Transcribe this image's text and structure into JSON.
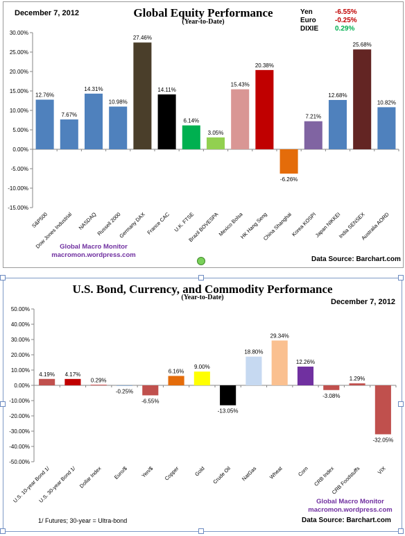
{
  "panel1": {
    "title": "Global Equity Performance",
    "subtitle": "(Year-to-Date)",
    "date": "December 7, 2012",
    "currencies": [
      {
        "name": "Yen",
        "value": "-6.55%",
        "color": "#c00000"
      },
      {
        "name": "Euro",
        "value": "-0.25%",
        "color": "#c00000"
      },
      {
        "name": "DIXIE",
        "value": "0.29%",
        "color": "#00b050"
      }
    ],
    "credit_line1": "Global Macro Monitor",
    "credit_line2": "macromon.wordpress.com",
    "source": "Data Source:   Barchart.com"
  },
  "panel2": {
    "title": "U.S. Bond, Currency, and Commodity Performance",
    "subtitle": "(Year-to-Date)",
    "date": "December 7, 2012",
    "credit_line1": "Global Macro Monitor",
    "credit_line2": "macromon.wordpress.com",
    "source": "Data Source:  Barchart.com",
    "footnote": "1/  Futures; 30-year = Ultra-bond"
  },
  "chart_data": [
    {
      "type": "bar",
      "title": "Global Equity Performance",
      "categories": [
        "S&P500",
        "Dow Jones Industrial",
        "NASDAQ",
        "Russell 2000",
        "Germany DAX",
        "France CAC",
        "U.K. FTSE",
        "Brazil BOVESPA",
        "Mexico Bolsa",
        "HK Hang Seng",
        "China Shanghai",
        "Korea KOSPI",
        "Japan NIKKEI",
        "India SENSEX",
        "Australia AORD"
      ],
      "values": [
        12.76,
        7.67,
        14.31,
        10.98,
        27.46,
        14.11,
        6.14,
        3.05,
        15.43,
        20.38,
        -6.26,
        7.21,
        12.68,
        25.68,
        10.82
      ],
      "labels": [
        "12.76%",
        "7.67%",
        "14.31%",
        "10.98%",
        "27.46%",
        "14.11%",
        "6.14%",
        "3.05%",
        "15.43%",
        "20.38%",
        "-6.26%",
        "7.21%",
        "12.68%",
        "25.68%",
        "10.82%"
      ],
      "colors": [
        "#4f81bd",
        "#4f81bd",
        "#4f81bd",
        "#4f81bd",
        "#4a3e2a",
        "#000000",
        "#00b050",
        "#92d050",
        "#d99694",
        "#c00000",
        "#e46c0a",
        "#8064a2",
        "#4f81bd",
        "#632523",
        "#4f81bd"
      ],
      "ylim": [
        -15,
        30
      ],
      "yticks": [
        "30.00%",
        "25.00%",
        "20.00%",
        "15.00%",
        "10.00%",
        "5.00%",
        "0.00%",
        "-5.00%",
        "-10.00%",
        "-15.00%"
      ],
      "grid": false
    },
    {
      "type": "bar",
      "title": "U.S. Bond, Currency, and Commodity Performance",
      "categories": [
        "U.S. 10-year Bond 1/",
        "U.S. 30-year Bond 1/",
        "Dollar Index",
        "Euro/$",
        "Yen/$",
        "Copper",
        "Gold",
        "Crude Oil",
        "NatGas",
        "Wheat",
        "Corn",
        "CRB Index",
        "CRB Foodstuffs",
        "VIX"
      ],
      "values": [
        4.19,
        4.17,
        0.29,
        -0.25,
        -6.55,
        6.16,
        9.0,
        -13.05,
        18.8,
        29.34,
        12.26,
        -3.08,
        1.29,
        -32.05
      ],
      "labels": [
        "4.19%",
        "4.17%",
        "0.29%",
        "-0.25%",
        "-6.55%",
        "6.16%",
        "9.00%",
        "-13.05%",
        "18.80%",
        "29.34%",
        "12.26%",
        "-3.08%",
        "1.29%",
        "-32.05%"
      ],
      "colors": [
        "#c0504d",
        "#c00000",
        "#c00000",
        "#4f81bd",
        "#c0504d",
        "#e46c0a",
        "#ffff00",
        "#000000",
        "#c6d9f1",
        "#fac090",
        "#7030a0",
        "#c0504d",
        "#c0504d",
        "#c0504d"
      ],
      "ylim": [
        -50,
        50
      ],
      "yticks": [
        "50.00%",
        "40.00%",
        "30.00%",
        "20.00%",
        "10.00%",
        "0.00%",
        "-10.00%",
        "-20.00%",
        "-30.00%",
        "-40.00%",
        "-50.00%"
      ],
      "grid": false
    }
  ]
}
